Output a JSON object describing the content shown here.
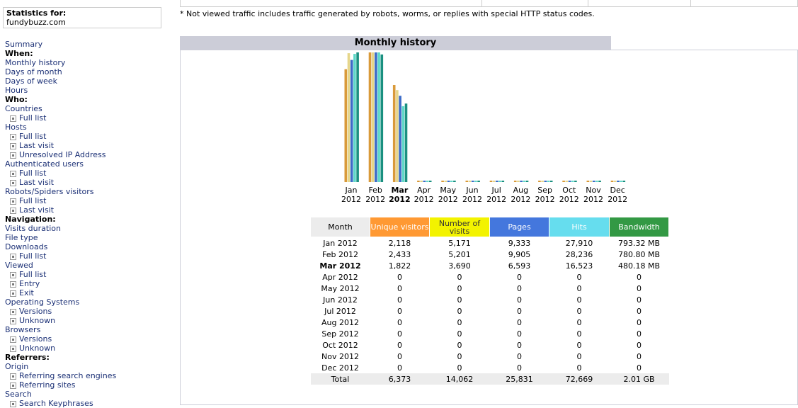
{
  "stats": {
    "title": "Statistics for:",
    "domain": "fundybuzz.com"
  },
  "note": "* Not viewed traffic includes traffic generated by robots, worms, or replies with special HTTP status codes.",
  "menu": [
    {
      "type": "link",
      "label": "Summary"
    },
    {
      "type": "header",
      "label": "When:"
    },
    {
      "type": "link",
      "label": "Monthly history"
    },
    {
      "type": "link",
      "label": "Days of month"
    },
    {
      "type": "link",
      "label": "Days of week"
    },
    {
      "type": "link",
      "label": "Hours"
    },
    {
      "type": "header",
      "label": "Who:"
    },
    {
      "type": "link",
      "label": "Countries"
    },
    {
      "type": "sub",
      "label": "Full list"
    },
    {
      "type": "link",
      "label": "Hosts"
    },
    {
      "type": "sub",
      "label": "Full list"
    },
    {
      "type": "sub",
      "label": "Last visit"
    },
    {
      "type": "sub",
      "label": "Unresolved IP Address"
    },
    {
      "type": "link",
      "label": "Authenticated users"
    },
    {
      "type": "sub",
      "label": "Full list"
    },
    {
      "type": "sub",
      "label": "Last visit"
    },
    {
      "type": "link",
      "label": "Robots/Spiders visitors"
    },
    {
      "type": "sub",
      "label": "Full list"
    },
    {
      "type": "sub",
      "label": "Last visit"
    },
    {
      "type": "header",
      "label": "Navigation:"
    },
    {
      "type": "link",
      "label": "Visits duration"
    },
    {
      "type": "link",
      "label": "File type"
    },
    {
      "type": "link",
      "label": "Downloads"
    },
    {
      "type": "sub",
      "label": "Full list"
    },
    {
      "type": "link",
      "label": "Viewed"
    },
    {
      "type": "sub",
      "label": "Full list"
    },
    {
      "type": "sub",
      "label": "Entry"
    },
    {
      "type": "sub",
      "label": "Exit"
    },
    {
      "type": "link",
      "label": "Operating Systems"
    },
    {
      "type": "sub",
      "label": "Versions"
    },
    {
      "type": "sub",
      "label": "Unknown"
    },
    {
      "type": "link",
      "label": "Browsers"
    },
    {
      "type": "sub",
      "label": "Versions"
    },
    {
      "type": "sub",
      "label": "Unknown"
    },
    {
      "type": "header",
      "label": "Referrers:"
    },
    {
      "type": "link",
      "label": "Origin"
    },
    {
      "type": "sub",
      "label": "Referring search engines"
    },
    {
      "type": "sub",
      "label": "Referring sites"
    },
    {
      "type": "link",
      "label": "Search"
    },
    {
      "type": "sub",
      "label": "Search Keyphrases"
    }
  ],
  "monthly": {
    "title": "Monthly history",
    "current_month_index": 2,
    "months": [
      {
        "m": "Jan",
        "y": "2012"
      },
      {
        "m": "Feb",
        "y": "2012"
      },
      {
        "m": "Mar",
        "y": "2012"
      },
      {
        "m": "Apr",
        "y": "2012"
      },
      {
        "m": "May",
        "y": "2012"
      },
      {
        "m": "Jun",
        "y": "2012"
      },
      {
        "m": "Jul",
        "y": "2012"
      },
      {
        "m": "Aug",
        "y": "2012"
      },
      {
        "m": "Sep",
        "y": "2012"
      },
      {
        "m": "Oct",
        "y": "2012"
      },
      {
        "m": "Nov",
        "y": "2012"
      },
      {
        "m": "Dec",
        "y": "2012"
      }
    ],
    "headers": [
      {
        "label": "Month",
        "color": "#ececec"
      },
      {
        "label": "Unique visitors",
        "color": "#ff9933"
      },
      {
        "label": "Number of visits",
        "color": "#f3f300"
      },
      {
        "label": "Pages",
        "color": "#4477dd"
      },
      {
        "label": "Hits",
        "color": "#66ddee"
      },
      {
        "label": "Bandwidth",
        "color": "#339944"
      }
    ],
    "rows": [
      [
        "Jan 2012",
        "2,118",
        "5,171",
        "9,333",
        "27,910",
        "793.32 MB"
      ],
      [
        "Feb 2012",
        "2,433",
        "5,201",
        "9,905",
        "28,236",
        "780.80 MB"
      ],
      [
        "Mar 2012",
        "1,822",
        "3,690",
        "6,593",
        "16,523",
        "480.18 MB"
      ],
      [
        "Apr 2012",
        "0",
        "0",
        "0",
        "0",
        "0"
      ],
      [
        "May 2012",
        "0",
        "0",
        "0",
        "0",
        "0"
      ],
      [
        "Jun 2012",
        "0",
        "0",
        "0",
        "0",
        "0"
      ],
      [
        "Jul 2012",
        "0",
        "0",
        "0",
        "0",
        "0"
      ],
      [
        "Aug 2012",
        "0",
        "0",
        "0",
        "0",
        "0"
      ],
      [
        "Sep 2012",
        "0",
        "0",
        "0",
        "0",
        "0"
      ],
      [
        "Oct 2012",
        "0",
        "0",
        "0",
        "0",
        "0"
      ],
      [
        "Nov 2012",
        "0",
        "0",
        "0",
        "0",
        "0"
      ],
      [
        "Dec 2012",
        "0",
        "0",
        "0",
        "0",
        "0"
      ]
    ],
    "total": [
      "Total",
      "6,373",
      "14,062",
      "25,831",
      "72,669",
      "2.01 GB"
    ]
  },
  "chart_data": {
    "type": "bar",
    "categories": [
      "Jan 2012",
      "Feb 2012",
      "Mar 2012",
      "Apr 2012",
      "May 2012",
      "Jun 2012",
      "Jul 2012",
      "Aug 2012",
      "Sep 2012",
      "Oct 2012",
      "Nov 2012",
      "Dec 2012"
    ],
    "series": [
      {
        "name": "Unique visitors",
        "color": "#d99a3a",
        "values": [
          2118,
          2433,
          1822,
          0,
          0,
          0,
          0,
          0,
          0,
          0,
          0,
          0
        ]
      },
      {
        "name": "Number of visits",
        "color": "#e6d68a",
        "values": [
          5171,
          5201,
          3690,
          0,
          0,
          0,
          0,
          0,
          0,
          0,
          0,
          0
        ]
      },
      {
        "name": "Pages",
        "color": "#3c6bc8",
        "values": [
          9333,
          9905,
          6593,
          0,
          0,
          0,
          0,
          0,
          0,
          0,
          0,
          0
        ]
      },
      {
        "name": "Hits",
        "color": "#5fd8c8",
        "values": [
          27910,
          28236,
          16523,
          0,
          0,
          0,
          0,
          0,
          0,
          0,
          0,
          0
        ]
      },
      {
        "name": "Bandwidth",
        "color": "#1a9080",
        "values": [
          793.32,
          780.8,
          480.18,
          0,
          0,
          0,
          0,
          0,
          0,
          0,
          0,
          0
        ]
      }
    ]
  }
}
